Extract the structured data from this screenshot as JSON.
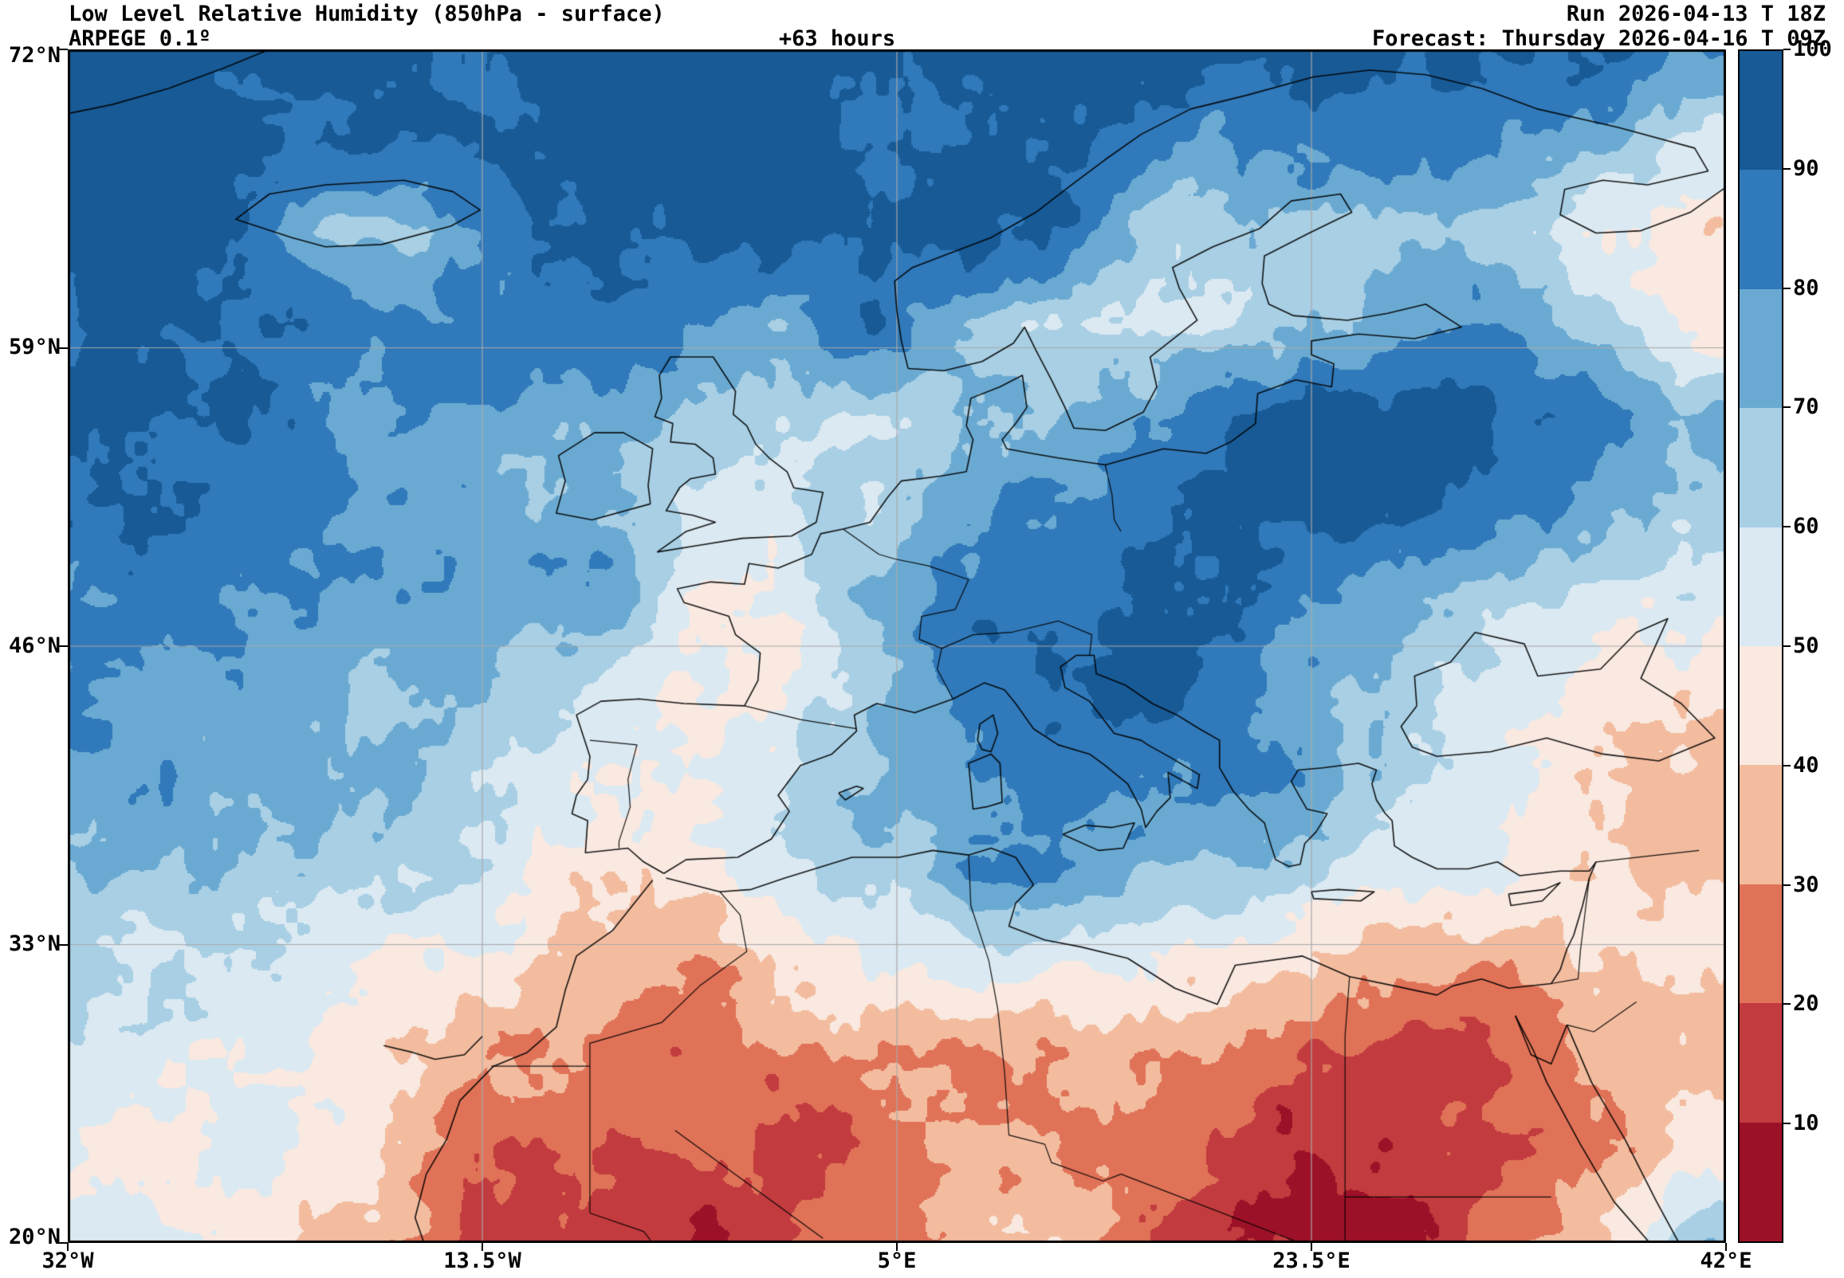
{
  "chart_data": {
    "type": "heatmap",
    "title": "Low Level Relative Humidity (850hPa - surface)",
    "model": "ARPEGE 0.1º",
    "lead_time": "+63 hours",
    "run": "Run 2026-04-13 T 18Z",
    "forecast": "Forecast: Thursday 2026-04-16 T 09Z",
    "variable": "Relative Humidity",
    "level": "850hPa - surface",
    "units": "%",
    "x_ticks": [
      "32°W",
      "13.5°W",
      "5°E",
      "23.5°E",
      "42°E"
    ],
    "y_ticks": [
      "72°N",
      "59°N",
      "46°N",
      "33°N",
      "20°N"
    ],
    "lon_range": [
      -32,
      42
    ],
    "lat_range": [
      20,
      72
    ],
    "grid_on": true,
    "legend_position": "right",
    "colorbar": {
      "ticks": [
        100,
        90,
        80,
        70,
        60,
        50,
        40,
        30,
        20,
        10
      ],
      "levels": [
        0,
        10,
        20,
        30,
        40,
        50,
        60,
        70,
        80,
        90,
        100
      ],
      "colors_low_to_high": [
        "#9c1127",
        "#c23b3e",
        "#e07258",
        "#f3bc9f",
        "#f9e9e0",
        "#dbe9f2",
        "#a8cfe4",
        "#6aaad2",
        "#3079ba",
        "#175a96"
      ]
    },
    "grid": {
      "lon_start": -32,
      "lon_step": 4,
      "lat_start": 72,
      "lat_step": -4,
      "values_percent": [
        [
          95,
          95,
          95,
          95,
          95,
          95,
          95,
          95,
          95,
          95,
          95,
          95,
          95,
          95,
          95,
          95,
          90,
          90,
          85
        ],
        [
          95,
          95,
          95,
          95,
          95,
          95,
          95,
          95,
          95,
          90,
          90,
          90,
          85,
          80,
          85,
          85,
          80,
          70,
          60
        ],
        [
          95,
          95,
          90,
          70,
          65,
          85,
          95,
          95,
          95,
          90,
          95,
          85,
          70,
          60,
          60,
          65,
          60,
          50,
          45
        ],
        [
          90,
          90,
          90,
          90,
          85,
          80,
          80,
          75,
          70,
          90,
          70,
          55,
          55,
          60,
          70,
          80,
          85,
          60,
          50
        ],
        [
          95,
          90,
          90,
          85,
          85,
          80,
          75,
          70,
          60,
          65,
          75,
          70,
          80,
          90,
          95,
          95,
          90,
          85,
          70
        ],
        [
          90,
          90,
          85,
          85,
          80,
          75,
          70,
          60,
          55,
          65,
          80,
          85,
          90,
          95,
          95,
          90,
          85,
          75,
          60
        ],
        [
          85,
          85,
          85,
          80,
          80,
          75,
          70,
          55,
          50,
          70,
          90,
          90,
          90,
          90,
          85,
          75,
          65,
          55,
          50
        ],
        [
          80,
          80,
          80,
          75,
          70,
          60,
          55,
          50,
          55,
          70,
          80,
          90,
          90,
          85,
          75,
          65,
          55,
          45,
          40
        ],
        [
          75,
          75,
          70,
          70,
          65,
          55,
          45,
          45,
          55,
          70,
          80,
          85,
          90,
          85,
          80,
          60,
          55,
          45,
          40
        ],
        [
          70,
          70,
          70,
          65,
          60,
          50,
          45,
          50,
          55,
          65,
          80,
          80,
          70,
          65,
          60,
          55,
          45,
          40,
          35
        ],
        [
          60,
          60,
          60,
          55,
          50,
          45,
          40,
          35,
          40,
          50,
          55,
          50,
          45,
          40,
          35,
          30,
          30,
          35,
          40
        ],
        [
          55,
          55,
          55,
          50,
          45,
          35,
          30,
          25,
          25,
          30,
          30,
          30,
          30,
          25,
          15,
          10,
          20,
          30,
          35
        ],
        [
          55,
          50,
          50,
          45,
          35,
          25,
          15,
          15,
          20,
          25,
          30,
          30,
          25,
          20,
          10,
          8,
          15,
          30,
          40
        ],
        [
          50,
          50,
          45,
          40,
          30,
          15,
          10,
          12,
          18,
          25,
          30,
          35,
          25,
          15,
          8,
          8,
          20,
          40,
          65
        ]
      ]
    }
  }
}
